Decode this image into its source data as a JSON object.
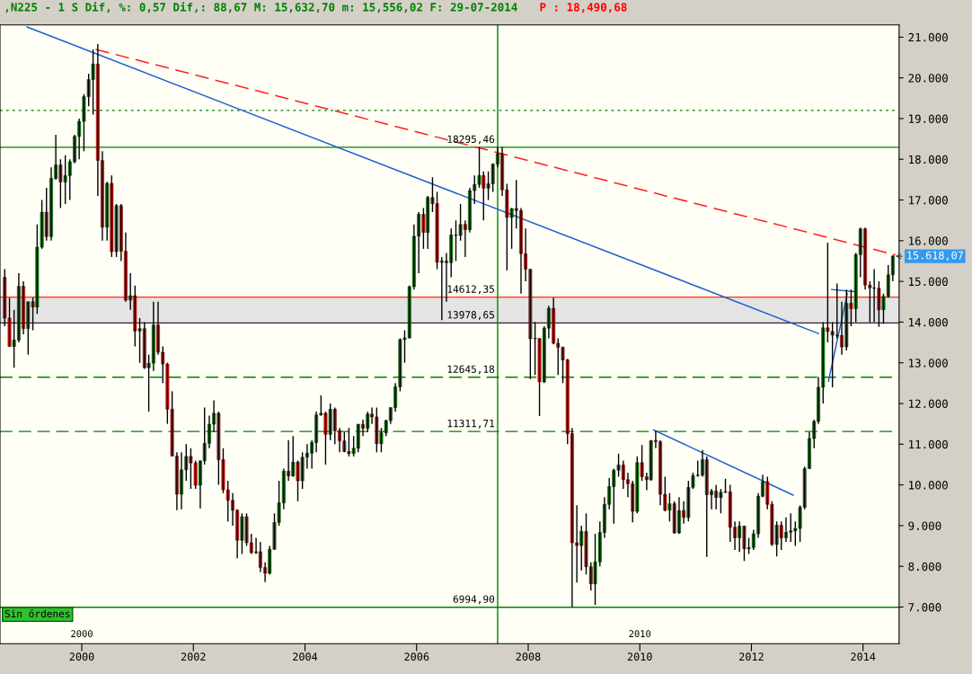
{
  "chart_data": {
    "type": "candlestick",
    "title": ",N225 - 1 S Dif, %: 0,57 Dif,: 88,67 M: 15,632,70 m: 15,556,02 F: 29-07-2014",
    "subtitle": "P : 18,490,68",
    "x": [
      "1998-08-15",
      "1998-09-15",
      "1998-10-15",
      "1998-11-15",
      "1998-12-15",
      "1999-01-15",
      "1999-02-15",
      "1999-03-15",
      "1999-04-15",
      "1999-05-15",
      "1999-06-15",
      "1999-07-15",
      "1999-08-15",
      "1999-09-15",
      "1999-10-15",
      "1999-11-15",
      "1999-12-15",
      "2000-01-15",
      "2000-02-15",
      "2000-03-15",
      "2000-04-15",
      "2000-05-15",
      "2000-06-15",
      "2000-07-15",
      "2000-08-15",
      "2000-09-15",
      "2000-10-15",
      "2000-11-15",
      "2000-12-15",
      "2001-01-15",
      "2001-02-15",
      "2001-03-15",
      "2001-04-15",
      "2001-05-15",
      "2001-06-15",
      "2001-07-15",
      "2001-08-15",
      "2001-09-15",
      "2001-10-15",
      "2001-11-15",
      "2001-12-15",
      "2002-01-15",
      "2002-02-15",
      "2002-03-15",
      "2002-04-15",
      "2002-05-15",
      "2002-06-15",
      "2002-07-15",
      "2002-08-15",
      "2002-09-15",
      "2002-10-15",
      "2002-11-15",
      "2002-12-15",
      "2003-01-15",
      "2003-02-15",
      "2003-03-15",
      "2003-04-15",
      "2003-05-15",
      "2003-06-15",
      "2003-07-15",
      "2003-08-15",
      "2003-09-15",
      "2003-10-15",
      "2003-11-15",
      "2003-12-15",
      "2004-01-15",
      "2004-02-15",
      "2004-03-15",
      "2004-04-15",
      "2004-05-15",
      "2004-06-15",
      "2004-07-15",
      "2004-08-15",
      "2004-09-15",
      "2004-10-15",
      "2004-11-15",
      "2004-12-15",
      "2005-01-15",
      "2005-02-15",
      "2005-03-15",
      "2005-04-15",
      "2005-05-15",
      "2005-06-15",
      "2005-07-15",
      "2005-08-15",
      "2005-09-15",
      "2005-10-15",
      "2005-11-15",
      "2005-12-15",
      "2006-01-15",
      "2006-02-15",
      "2006-03-15",
      "2006-04-15",
      "2006-05-15",
      "2006-06-15",
      "2006-07-15",
      "2006-08-15",
      "2006-09-15",
      "2006-10-15",
      "2006-11-15",
      "2006-12-15",
      "2007-01-15",
      "2007-02-15",
      "2007-03-15",
      "2007-04-15",
      "2007-05-15",
      "2007-06-15",
      "2007-07-15",
      "2007-08-15",
      "2007-09-15",
      "2007-10-15",
      "2007-11-15",
      "2007-12-15",
      "2008-01-15",
      "2008-02-15",
      "2008-03-15",
      "2008-04-15",
      "2008-05-15",
      "2008-06-15",
      "2008-07-15",
      "2008-08-15",
      "2008-09-15",
      "2008-10-15",
      "2008-11-15",
      "2008-12-15",
      "2009-01-15",
      "2009-02-15",
      "2009-03-15",
      "2009-04-15",
      "2009-05-15",
      "2009-06-15",
      "2009-07-15",
      "2009-08-15",
      "2009-09-15",
      "2009-10-15",
      "2009-11-15",
      "2009-12-15",
      "2010-01-15",
      "2010-02-15",
      "2010-03-15",
      "2010-04-15",
      "2010-05-15",
      "2010-06-15",
      "2010-07-15",
      "2010-08-15",
      "2010-09-15",
      "2010-10-15",
      "2010-11-15",
      "2010-12-15",
      "2011-01-15",
      "2011-02-15",
      "2011-03-15",
      "2011-04-15",
      "2011-05-15",
      "2011-06-15",
      "2011-07-15",
      "2011-08-15",
      "2011-09-15",
      "2011-10-15",
      "2011-11-15",
      "2011-12-15",
      "2012-01-15",
      "2012-02-15",
      "2012-03-15",
      "2012-04-15",
      "2012-05-15",
      "2012-06-15",
      "2012-07-15",
      "2012-08-15",
      "2012-09-15",
      "2012-10-15",
      "2012-11-15",
      "2012-12-15",
      "2013-01-15",
      "2013-02-15",
      "2013-03-15",
      "2013-04-15",
      "2013-05-15",
      "2013-06-15",
      "2013-07-15",
      "2013-08-15",
      "2013-09-15",
      "2013-10-15",
      "2013-11-15",
      "2013-12-15",
      "2014-01-15",
      "2014-02-15",
      "2014-03-15",
      "2014-04-15",
      "2014-05-15",
      "2014-06-15",
      "2014-07-15"
    ],
    "ohlc": [
      [
        15100,
        15300,
        13900,
        14100
      ],
      [
        14100,
        14600,
        13400,
        13400
      ],
      [
        13400,
        14300,
        12880,
        13560
      ],
      [
        13560,
        15200,
        13500,
        14880
      ],
      [
        14880,
        15000,
        13700,
        13840
      ],
      [
        13840,
        14500,
        13200,
        14500
      ],
      [
        14500,
        14600,
        13800,
        14370
      ],
      [
        14370,
        16400,
        14200,
        15840
      ],
      [
        15840,
        17000,
        15800,
        16700
      ],
      [
        16700,
        17300,
        16000,
        16100
      ],
      [
        16100,
        17800,
        16000,
        17530
      ],
      [
        17530,
        18600,
        17500,
        17860
      ],
      [
        17860,
        18000,
        16800,
        17440
      ],
      [
        17440,
        18100,
        16900,
        17600
      ],
      [
        17600,
        18000,
        17000,
        17940
      ],
      [
        17940,
        18600,
        17900,
        18560
      ],
      [
        18560,
        19000,
        18000,
        18930
      ],
      [
        18930,
        19600,
        18200,
        19540
      ],
      [
        19540,
        20100,
        19300,
        19960
      ],
      [
        19960,
        20700,
        19100,
        20340
      ],
      [
        20340,
        20830,
        17100,
        17970
      ],
      [
        17970,
        18200,
        16000,
        16330
      ],
      [
        16330,
        17450,
        16000,
        17410
      ],
      [
        17410,
        17600,
        15600,
        15730
      ],
      [
        15730,
        16900,
        15600,
        16860
      ],
      [
        16860,
        16900,
        15500,
        15740
      ],
      [
        15740,
        16200,
        14500,
        14540
      ],
      [
        14540,
        15200,
        14300,
        14650
      ],
      [
        14650,
        14900,
        13400,
        13780
      ],
      [
        13780,
        14100,
        13000,
        13840
      ],
      [
        13840,
        14000,
        12850,
        12880
      ],
      [
        12880,
        13200,
        11800,
        12990
      ],
      [
        12990,
        14500,
        12800,
        13930
      ],
      [
        13930,
        14500,
        13200,
        13260
      ],
      [
        13260,
        13400,
        12500,
        12970
      ],
      [
        12970,
        13000,
        11500,
        11860
      ],
      [
        11860,
        12300,
        10700,
        10710
      ],
      [
        10710,
        10800,
        9380,
        9770
      ],
      [
        9770,
        10800,
        9400,
        10370
      ],
      [
        10370,
        11000,
        10100,
        10700
      ],
      [
        10700,
        10900,
        9900,
        10540
      ],
      [
        10540,
        10600,
        9900,
        9990
      ],
      [
        9990,
        10600,
        9420,
        10590
      ],
      [
        10590,
        11900,
        10500,
        11020
      ],
      [
        11020,
        11700,
        10900,
        11490
      ],
      [
        11490,
        12080,
        11300,
        11760
      ],
      [
        11760,
        11800,
        10000,
        10620
      ],
      [
        10620,
        10900,
        9800,
        9880
      ],
      [
        9880,
        10100,
        9100,
        9620
      ],
      [
        9620,
        9800,
        9000,
        9380
      ],
      [
        9380,
        9400,
        8200,
        8640
      ],
      [
        8640,
        9300,
        8300,
        9220
      ],
      [
        9220,
        9300,
        8500,
        8580
      ],
      [
        8580,
        8800,
        8300,
        8340
      ],
      [
        8340,
        8700,
        8300,
        8360
      ],
      [
        8360,
        8600,
        7860,
        7970
      ],
      [
        7970,
        8100,
        7610,
        7830
      ],
      [
        7830,
        8500,
        7800,
        8420
      ],
      [
        8420,
        9300,
        8400,
        9080
      ],
      [
        9080,
        10100,
        9000,
        9560
      ],
      [
        9560,
        10400,
        9400,
        10340
      ],
      [
        10340,
        11100,
        10100,
        10220
      ],
      [
        10220,
        11200,
        10200,
        10560
      ],
      [
        10560,
        10600,
        9600,
        10100
      ],
      [
        10100,
        10800,
        9900,
        10680
      ],
      [
        10680,
        11000,
        10400,
        10780
      ],
      [
        10780,
        11100,
        10400,
        11040
      ],
      [
        11040,
        11800,
        10800,
        11720
      ],
      [
        11720,
        12200,
        11700,
        11760
      ],
      [
        11760,
        11800,
        10500,
        11240
      ],
      [
        11240,
        12000,
        11100,
        11860
      ],
      [
        11860,
        11900,
        11000,
        11330
      ],
      [
        11330,
        11400,
        10800,
        11080
      ],
      [
        11080,
        11300,
        10800,
        10820
      ],
      [
        10820,
        11400,
        10700,
        10770
      ],
      [
        10770,
        11200,
        10700,
        10900
      ],
      [
        10900,
        11500,
        10800,
        11490
      ],
      [
        11490,
        11600,
        11200,
        11390
      ],
      [
        11390,
        11800,
        11300,
        11740
      ],
      [
        11740,
        11900,
        11500,
        11670
      ],
      [
        11670,
        11900,
        10800,
        11010
      ],
      [
        11010,
        11400,
        10800,
        11280
      ],
      [
        11280,
        11600,
        11200,
        11580
      ],
      [
        11580,
        11900,
        11500,
        11900
      ],
      [
        11900,
        12500,
        11800,
        12410
      ],
      [
        12410,
        13600,
        12300,
        13570
      ],
      [
        13570,
        13800,
        13000,
        13610
      ],
      [
        13610,
        14900,
        13600,
        14870
      ],
      [
        14870,
        16400,
        14800,
        16110
      ],
      [
        16110,
        16700,
        15200,
        16650
      ],
      [
        16650,
        16800,
        15800,
        16200
      ],
      [
        16200,
        17100,
        15800,
        17060
      ],
      [
        17060,
        17560,
        16700,
        16910
      ],
      [
        16910,
        17200,
        15300,
        15470
      ],
      [
        15470,
        15600,
        14050,
        15500
      ],
      [
        15500,
        15700,
        14500,
        15460
      ],
      [
        15460,
        16300,
        15100,
        16140
      ],
      [
        16140,
        16500,
        15500,
        16130
      ],
      [
        16130,
        16900,
        16000,
        16400
      ],
      [
        16400,
        16500,
        15600,
        16270
      ],
      [
        16270,
        17300,
        16200,
        17230
      ],
      [
        17230,
        17600,
        16900,
        17380
      ],
      [
        17380,
        18300,
        17300,
        17600
      ],
      [
        17600,
        17700,
        16500,
        17290
      ],
      [
        17290,
        17700,
        17000,
        17400
      ],
      [
        17400,
        17900,
        17200,
        17880
      ],
      [
        17880,
        18300,
        17800,
        18140
      ],
      [
        18140,
        18295,
        17100,
        17250
      ],
      [
        17250,
        17400,
        15270,
        16570
      ],
      [
        16570,
        16800,
        15800,
        16790
      ],
      [
        16790,
        17490,
        16300,
        16740
      ],
      [
        16740,
        16800,
        14700,
        15680
      ],
      [
        15680,
        16300,
        15000,
        15300
      ],
      [
        15300,
        15300,
        12600,
        13590
      ],
      [
        13590,
        14000,
        12700,
        13600
      ],
      [
        13600,
        13600,
        11690,
        12530
      ],
      [
        12530,
        13900,
        12500,
        13850
      ],
      [
        13850,
        14400,
        13600,
        14340
      ],
      [
        14340,
        14600,
        13450,
        13480
      ],
      [
        13480,
        13600,
        12700,
        13380
      ],
      [
        13380,
        13400,
        12500,
        13070
      ],
      [
        13070,
        13100,
        11000,
        11260
      ],
      [
        11260,
        11400,
        7000,
        8580
      ],
      [
        8580,
        9500,
        7600,
        8510
      ],
      [
        8510,
        9000,
        7900,
        8860
      ],
      [
        8860,
        9300,
        7800,
        7990
      ],
      [
        7990,
        8100,
        7400,
        7570
      ],
      [
        7570,
        8800,
        7050,
        8110
      ],
      [
        8110,
        9100,
        8000,
        8830
      ],
      [
        8830,
        9700,
        8700,
        9520
      ],
      [
        9520,
        10170,
        9400,
        9960
      ],
      [
        9960,
        10400,
        9050,
        10360
      ],
      [
        10360,
        10770,
        10200,
        10490
      ],
      [
        10490,
        10600,
        9900,
        10130
      ],
      [
        10130,
        10300,
        9700,
        10030
      ],
      [
        10030,
        10100,
        9080,
        9350
      ],
      [
        9350,
        10700,
        9300,
        10550
      ],
      [
        10550,
        10980,
        10100,
        10200
      ],
      [
        10200,
        10300,
        9870,
        10130
      ],
      [
        10130,
        11100,
        10100,
        11090
      ],
      [
        11090,
        11340,
        10900,
        11060
      ],
      [
        11060,
        11100,
        9500,
        9770
      ],
      [
        9770,
        10200,
        9350,
        9380
      ],
      [
        9380,
        9800,
        9100,
        9540
      ],
      [
        9540,
        9600,
        8800,
        8820
      ],
      [
        8820,
        9700,
        8800,
        9370
      ],
      [
        9370,
        9600,
        9050,
        9200
      ],
      [
        9200,
        10100,
        9100,
        9940
      ],
      [
        9940,
        10300,
        9900,
        10230
      ],
      [
        10230,
        10600,
        10200,
        10240
      ],
      [
        10240,
        10860,
        10200,
        10620
      ],
      [
        10620,
        10700,
        8230,
        9760
      ],
      [
        9760,
        9900,
        9400,
        9850
      ],
      [
        9850,
        10000,
        9400,
        9690
      ],
      [
        9690,
        9900,
        9300,
        9820
      ],
      [
        9820,
        10150,
        9800,
        9830
      ],
      [
        9830,
        10000,
        8600,
        8960
      ],
      [
        8960,
        9100,
        8400,
        8700
      ],
      [
        8700,
        9100,
        8350,
        8990
      ],
      [
        8990,
        9000,
        8130,
        8430
      ],
      [
        8430,
        8700,
        8300,
        8460
      ],
      [
        8460,
        8900,
        8400,
        8800
      ],
      [
        8800,
        9800,
        8700,
        9720
      ],
      [
        9720,
        10250,
        9700,
        10080
      ],
      [
        10080,
        10200,
        9400,
        9520
      ],
      [
        9520,
        9600,
        8500,
        8540
      ],
      [
        8540,
        9100,
        8240,
        9010
      ],
      [
        9010,
        9100,
        8400,
        8700
      ],
      [
        8700,
        9200,
        8600,
        8840
      ],
      [
        8840,
        9300,
        8600,
        8870
      ],
      [
        8870,
        9100,
        8500,
        8930
      ],
      [
        8930,
        9500,
        8600,
        9450
      ],
      [
        9450,
        10450,
        9400,
        10400
      ],
      [
        10400,
        11300,
        10400,
        11140
      ],
      [
        11140,
        11600,
        10900,
        11560
      ],
      [
        11560,
        12650,
        11500,
        12400
      ],
      [
        12400,
        14000,
        12000,
        13860
      ],
      [
        13860,
        15950,
        13500,
        13770
      ],
      [
        13770,
        14000,
        12400,
        13680
      ],
      [
        13680,
        14950,
        13600,
        13670
      ],
      [
        13670,
        14500,
        13200,
        13390
      ],
      [
        13390,
        14800,
        13300,
        14460
      ],
      [
        14460,
        14800,
        13900,
        14330
      ],
      [
        14330,
        15700,
        14000,
        15660
      ],
      [
        15660,
        16320,
        15100,
        16290
      ],
      [
        16290,
        16320,
        14800,
        14910
      ],
      [
        14910,
        15000,
        13990,
        14840
      ],
      [
        14840,
        15300,
        14000,
        14830
      ],
      [
        14830,
        15000,
        13880,
        14300
      ],
      [
        14300,
        14700,
        13960,
        14630
      ],
      [
        14630,
        15400,
        14600,
        15160
      ],
      [
        15160,
        15650,
        15000,
        15618.07
      ]
    ],
    "series": [
      {
        "type": "line",
        "color": "#2060d0",
        "x": [
          "1999-01-08",
          "2013-03-15"
        ],
        "values": [
          21250,
          13720
        ]
      },
      {
        "type": "line",
        "color": "#ff2020",
        "line_style": "dashed",
        "x": [
          "2000-04-01",
          "2014-08-01"
        ],
        "values": [
          20700,
          15650
        ]
      },
      {
        "type": "line",
        "color": "#2060d0",
        "x": [
          "2010-04-01",
          "2012-10-01"
        ],
        "values": [
          11350,
          9750
        ]
      },
      {
        "type": "line",
        "color": "#2060d0",
        "x": [
          "2013-05-20",
          "2013-09-20"
        ],
        "values": [
          12550,
          14700
        ]
      },
      {
        "type": "line",
        "color": "#2060d0",
        "x": [
          "2013-06-10",
          "2013-11-01"
        ],
        "values": [
          14800,
          14750
        ]
      }
    ],
    "ref_lines": [
      {
        "axis": "y",
        "value": 19200,
        "color": "#008000",
        "line_style": "dotted"
      },
      {
        "axis": "y",
        "value": 18295.46,
        "label": "18295,46",
        "color": "#008000",
        "line_style": "solid"
      },
      {
        "axis": "y",
        "value": 14612.35,
        "label": "14612,35",
        "color": "#ff3010",
        "line_style": "solid"
      },
      {
        "axis": "y",
        "value": 13978.65,
        "label": "13978,65",
        "color": "#402020",
        "line_style": "solid"
      },
      {
        "axis": "y",
        "value": 12645.18,
        "label": "12645,18",
        "color": "#008000",
        "line_style": "dashed"
      },
      {
        "axis": "y",
        "value": 11311.71,
        "label": "11311,71",
        "color": "#008000",
        "line_style": "dashed"
      },
      {
        "axis": "y",
        "value": 6994.9,
        "label": "6994,90",
        "color": "#008000",
        "line_style": "solid"
      },
      {
        "axis": "x",
        "value": "2007-06-15",
        "color": "#008000",
        "line_style": "solid"
      }
    ],
    "bands": [
      {
        "axis": "y",
        "from": 13978.65,
        "to": 14612.35,
        "color": "#e4e4e4"
      }
    ],
    "annotations": [
      {
        "text": "15.618,07",
        "x": "2014-07-15",
        "y": 15618.07
      },
      "Sin órdenes"
    ],
    "xlim": [
      "1998-07-15",
      "2014-08-25"
    ],
    "xticks": [
      {
        "value": "2000-01-01",
        "label": "2000"
      },
      {
        "value": "2002-01-01",
        "label": "2002"
      },
      {
        "value": "2004-01-01",
        "label": "2004"
      },
      {
        "value": "2006-01-01",
        "label": "2006"
      },
      {
        "value": "2008-01-01",
        "label": "2008"
      },
      {
        "value": "2010-01-01",
        "label": "2010"
      },
      {
        "value": "2012-01-01",
        "label": "2012"
      },
      {
        "value": "2014-01-01",
        "label": "2014"
      }
    ],
    "x2lim": [
      "1998-07-15",
      "2014-08-25"
    ],
    "x2ticks": [
      {
        "value": "2000-01-01",
        "label": "2000"
      },
      {
        "value": "2010-01-01",
        "label": "2010"
      }
    ],
    "ylim": [
      6100,
      21300
    ],
    "yticks": [
      {
        "value": 7000,
        "label": "7.000"
      },
      {
        "value": 8000,
        "label": "8.000"
      },
      {
        "value": 9000,
        "label": "9.000"
      },
      {
        "value": 10000,
        "label": "10.000"
      },
      {
        "value": 11000,
        "label": "11.000"
      },
      {
        "value": 12000,
        "label": "12.000"
      },
      {
        "value": 13000,
        "label": "13.000"
      },
      {
        "value": 14000,
        "label": "14.000"
      },
      {
        "value": 15000,
        "label": "15.000"
      },
      {
        "value": 16000,
        "label": "16.000"
      },
      {
        "value": 17000,
        "label": "17.000"
      },
      {
        "value": 18000,
        "label": "18.000"
      },
      {
        "value": 19000,
        "label": "19.000"
      },
      {
        "value": 20000,
        "label": "20.000"
      },
      {
        "value": 21000,
        "label": "21.000"
      }
    ],
    "grid": false,
    "legend": false
  }
}
